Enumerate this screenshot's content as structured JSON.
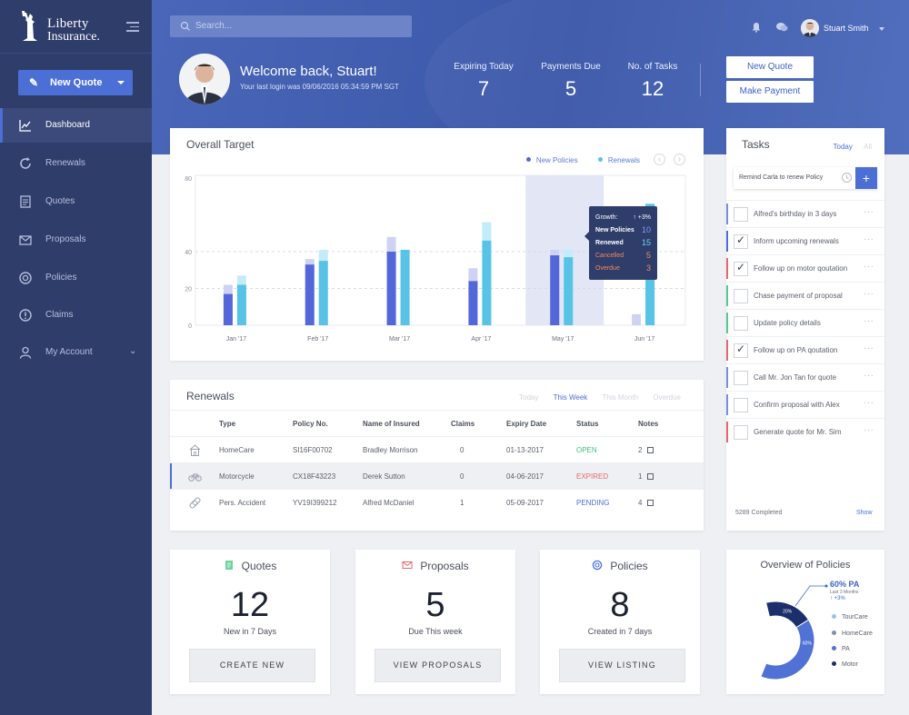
{
  "brand": {
    "line1": "Liberty",
    "line2": "Insurance."
  },
  "sidebar": {
    "new_quote_label": "New Quote",
    "items": [
      {
        "label": "Dashboard",
        "icon": "chart-icon"
      },
      {
        "label": "Renewals",
        "icon": "refresh-icon"
      },
      {
        "label": "Quotes",
        "icon": "document-icon"
      },
      {
        "label": "Proposals",
        "icon": "mail-icon"
      },
      {
        "label": "Policies",
        "icon": "lifebuoy-icon"
      },
      {
        "label": "Claims",
        "icon": "alert-icon"
      },
      {
        "label": "My Account",
        "icon": "user-icon"
      }
    ]
  },
  "header": {
    "search_placeholder": "Search...",
    "user_name": "Stuart Smith",
    "welcome": "Welcome back, Stuart!",
    "last_login": "Your last login was 09/06/2016 05:34:59 PM SGT",
    "stats": [
      {
        "label": "Expiring Today",
        "value": "7"
      },
      {
        "label": "Payments Due",
        "value": "5"
      },
      {
        "label": "No. of Tasks",
        "value": "12"
      }
    ],
    "btn_new_quote": "New Quote",
    "btn_make_payment": "Make Payment"
  },
  "overall_target": {
    "title": "Overall Target",
    "legend_new": "New Policies",
    "legend_renewals": "Renewals",
    "prev": "‹",
    "next": "›",
    "tooltip": {
      "growth_label": "Growth:",
      "growth_value": "+3%",
      "new_label": "New Policies",
      "new_value": "10",
      "renewed_label": "Renewed",
      "renewed_value": "15",
      "cancelled_label": "Cancelled",
      "cancelled_value": "5",
      "overdue_label": "Overdue",
      "overdue_value": "3"
    }
  },
  "chart_data": {
    "type": "bar",
    "categories": [
      "Jan '17",
      "Feb '17",
      "Mar '17",
      "Apr '17",
      "May '17",
      "Jun '17"
    ],
    "yticks": [
      0,
      20,
      40,
      80
    ],
    "ylim": [
      0,
      80
    ],
    "series": [
      {
        "name": "New Policies",
        "values": [
          17,
          33,
          40,
          24,
          38,
          0
        ],
        "target": [
          22,
          36,
          48,
          31,
          41,
          6
        ]
      },
      {
        "name": "Renewals",
        "values": [
          22,
          35,
          41,
          46,
          37,
          66
        ],
        "target": [
          27,
          41,
          41,
          56,
          41,
          66
        ]
      }
    ],
    "highlight_category": "May '17",
    "colors": {
      "new": "#5467d9",
      "new_light": "#cfd3f3",
      "renew": "#58c3e6",
      "renew_light": "#c4ecf8"
    }
  },
  "renewals": {
    "title": "Renewals",
    "filters": [
      "Today",
      "This Week",
      "This Month",
      "Overdue"
    ],
    "active_filter": "This Week",
    "columns": [
      "Type",
      "Policy No.",
      "Name of Insured",
      "Claims",
      "Expiry Date",
      "Status",
      "Notes"
    ],
    "rows": [
      {
        "icon": "house-icon",
        "type": "HomeCare",
        "policy": "SI16F00702",
        "name": "Bradley Morrison",
        "claims": "0",
        "expiry": "01-13-2017",
        "status": "OPEN",
        "status_color": "#3fbf7f",
        "notes": "2"
      },
      {
        "icon": "bicycle-icon",
        "type": "Motorcycle",
        "policy": "CX18F43223",
        "name": "Derek Sutton",
        "claims": "0",
        "expiry": "04-06-2017",
        "status": "EXPIRED",
        "status_color": "#e16a6a",
        "notes": "1"
      },
      {
        "icon": "bandage-icon",
        "type": "Pers. Accident",
        "policy": "YV19I399212",
        "name": "Alfred McDaniel",
        "claims": "1",
        "expiry": "05-09-2017",
        "status": "PENDING",
        "status_color": "#4c6fd6",
        "notes": "4"
      }
    ]
  },
  "tasks": {
    "title": "Tasks",
    "filter_today": "Today",
    "filter_all": "All",
    "input_text": "Remind Carla to renew Policy",
    "add": "+",
    "items": [
      {
        "label": "Alfred's birthday in 3 days",
        "checked": false,
        "color": "#7a8de0"
      },
      {
        "label": "Inform upcoming renewals",
        "checked": true,
        "color": "#4c6fd6"
      },
      {
        "label": "Follow up on motor qoutation",
        "checked": true,
        "color": "#e16a6a"
      },
      {
        "label": "Chase payment of proposal",
        "checked": false,
        "color": "#56c98f"
      },
      {
        "label": "Update policy details",
        "checked": false,
        "color": "#56c98f"
      },
      {
        "label": "Follow up on PA qoutation",
        "checked": true,
        "color": "#e16a6a"
      },
      {
        "label": "Call Mr. Jon Tan for quote",
        "checked": false,
        "color": "#7a8de0"
      },
      {
        "label": "Confirm proposal with Alex",
        "checked": false,
        "color": "#7a8de0"
      },
      {
        "label": "Generate quote for Mr. Sim",
        "checked": false,
        "color": "#e16a6a"
      }
    ],
    "completed": "5289 Completed",
    "show": "Show"
  },
  "summary": {
    "quotes": {
      "title": "Quotes",
      "value": "12",
      "sub": "New in 7 Days",
      "button": "CREATE NEW"
    },
    "proposals": {
      "title": "Proposals",
      "value": "5",
      "sub": "Due This week",
      "button": "VIEW PROPOSALS"
    },
    "policies": {
      "title": "Policies",
      "value": "8",
      "sub": "Created in 7 days",
      "button": "VIEW LISTING"
    }
  },
  "overview": {
    "title": "Overview of Policies",
    "callout_value": "60% PA",
    "callout_sub": "Last 3 Months",
    "callout_growth": "+3%",
    "slices": [
      {
        "label": "PA",
        "value": 60,
        "text": "60%",
        "color": "#5072d4"
      },
      {
        "label": "HomeCare",
        "value": 4,
        "text": "4%",
        "color": "#7d8eb8"
      },
      {
        "label": "TourCare",
        "value": 16,
        "text": "16%",
        "color": "#9fc0ec"
      },
      {
        "label": "Motor",
        "value": 20,
        "text": "20%",
        "color": "#1c2f6b"
      }
    ],
    "legend": [
      "TourCare",
      "HomeCare",
      "PA",
      "Motor"
    ]
  }
}
